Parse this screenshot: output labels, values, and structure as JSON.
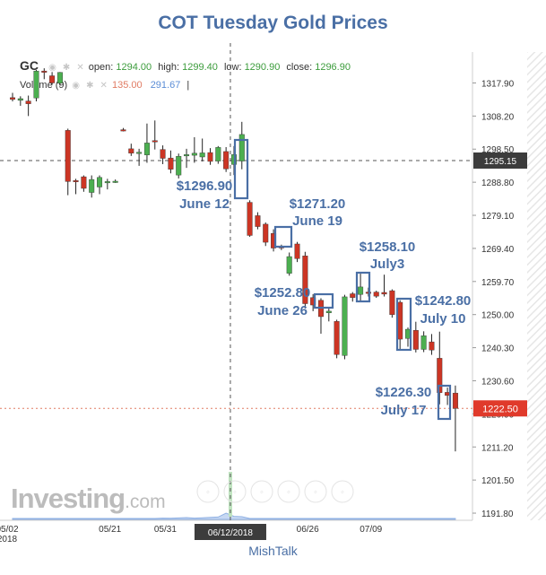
{
  "header": {
    "title": "COT Tuesday Gold Prices"
  },
  "legend": {
    "symbol": "GC",
    "open_label": "open:",
    "open": "1294.00",
    "high_label": "high:",
    "high": "1299.40",
    "low_label": "low:",
    "low": "1290.90",
    "close_label": "close:",
    "close": "1296.90",
    "volume_label": "Volume (9)",
    "volume_value1": "135.00",
    "volume_value2": "291.67",
    "icons": [
      "eye-icon",
      "gear-icon",
      "close-icon"
    ]
  },
  "watermark": {
    "brand": "Investing",
    "suffix": ".com"
  },
  "footer": {
    "credit": "MishTalk"
  },
  "colors": {
    "up": "#4caf50",
    "down": "#cc3524",
    "annotation": "#4a6fa5",
    "current_price_tag": "#e03a2b",
    "crosshair_tag": "#3c3c3c"
  },
  "chart_data": {
    "type": "candlestick",
    "title": "COT Tuesday Gold Prices",
    "ylim": [
      1187,
      1325
    ],
    "y_ticks": [
      "1317.90",
      "1308.20",
      "1298.50",
      "1288.80",
      "1279.10",
      "1269.40",
      "1259.70",
      "1250.00",
      "1240.30",
      "1230.60",
      "1220.90",
      "1211.20",
      "1201.50",
      "1191.80"
    ],
    "x_ticks": [
      {
        "label": "05/02",
        "sub": "2018",
        "index": 0
      },
      {
        "label": "05/21",
        "index": 13
      },
      {
        "label": "05/31",
        "index": 20
      },
      {
        "label": "06/26",
        "index": 38
      },
      {
        "label": "07/09",
        "index": 46
      }
    ],
    "crosshair": {
      "price": "1295.15",
      "date": "06/12/2018",
      "index": 28
    },
    "current_price": "1222.50",
    "candles": [
      {
        "o": 1313.6,
        "h": 1315.0,
        "l": 1312.5,
        "c": 1313.1
      },
      {
        "o": 1312.8,
        "h": 1314.0,
        "l": 1311.2,
        "c": 1313.3
      },
      {
        "o": 1312.6,
        "h": 1314.2,
        "l": 1308.2,
        "c": 1311.8
      },
      {
        "o": 1313.5,
        "h": 1321.7,
        "l": 1312.5,
        "c": 1321.4
      },
      {
        "o": 1321.4,
        "h": 1322.2,
        "l": 1319.0,
        "c": 1321.1
      },
      {
        "o": 1320.0,
        "h": 1321.1,
        "l": 1317.4,
        "c": 1317.9
      },
      {
        "o": 1317.8,
        "h": 1321.1,
        "l": 1317.1,
        "c": 1321.0
      },
      {
        "o": 1304.0,
        "h": 1304.5,
        "l": 1285.0,
        "c": 1289.0
      },
      {
        "o": 1289.3,
        "h": 1289.8,
        "l": 1285.3,
        "c": 1289.1
      },
      {
        "o": 1290.4,
        "h": 1290.8,
        "l": 1286.0,
        "c": 1287.0
      },
      {
        "o": 1285.8,
        "h": 1290.8,
        "l": 1284.3,
        "c": 1289.6
      },
      {
        "o": 1287.4,
        "h": 1290.8,
        "l": 1285.3,
        "c": 1290.2
      },
      {
        "o": 1288.8,
        "h": 1289.8,
        "l": 1286.7,
        "c": 1289.0
      },
      {
        "o": 1289.0,
        "h": 1289.6,
        "l": 1288.6,
        "c": 1289.1
      },
      {
        "o": 1304.2,
        "h": 1304.7,
        "l": 1303.7,
        "c": 1304.1
      },
      {
        "o": 1298.6,
        "h": 1300.1,
        "l": 1296.5,
        "c": 1297.3
      },
      {
        "o": 1297.4,
        "h": 1298.6,
        "l": 1293.6,
        "c": 1297.6
      },
      {
        "o": 1296.8,
        "h": 1306.0,
        "l": 1294.5,
        "c": 1300.3
      },
      {
        "o": 1301.0,
        "h": 1306.9,
        "l": 1298.4,
        "c": 1300.6
      },
      {
        "o": 1298.4,
        "h": 1299.6,
        "l": 1294.1,
        "c": 1295.8
      },
      {
        "o": 1295.9,
        "h": 1298.1,
        "l": 1291.4,
        "c": 1292.6
      },
      {
        "o": 1290.9,
        "h": 1297.2,
        "l": 1289.9,
        "c": 1296.4
      },
      {
        "o": 1296.5,
        "h": 1298.6,
        "l": 1293.0,
        "c": 1296.9
      },
      {
        "o": 1296.7,
        "h": 1302.0,
        "l": 1294.5,
        "c": 1297.3
      },
      {
        "o": 1296.2,
        "h": 1301.6,
        "l": 1294.9,
        "c": 1297.4
      },
      {
        "o": 1297.5,
        "h": 1298.8,
        "l": 1293.9,
        "c": 1294.9
      },
      {
        "o": 1295.0,
        "h": 1299.4,
        "l": 1294.2,
        "c": 1299.0
      },
      {
        "o": 1297.8,
        "h": 1299.1,
        "l": 1291.8,
        "c": 1292.7
      },
      {
        "o": 1294.0,
        "h": 1299.4,
        "l": 1290.9,
        "c": 1296.9
      },
      {
        "o": 1295.0,
        "h": 1306.5,
        "l": 1292.6,
        "c": 1302.8
      },
      {
        "o": 1282.9,
        "h": 1283.5,
        "l": 1272.8,
        "c": 1273.2
      },
      {
        "o": 1279.0,
        "h": 1280.0,
        "l": 1275.0,
        "c": 1275.8
      },
      {
        "o": 1276.5,
        "h": 1277.0,
        "l": 1270.1,
        "c": 1271.2
      },
      {
        "o": 1273.8,
        "h": 1275.0,
        "l": 1268.5,
        "c": 1269.5
      },
      {
        "o": 1269.9,
        "h": 1270.5,
        "l": 1268.9,
        "c": 1269.6
      },
      {
        "o": 1262.1,
        "h": 1268.2,
        "l": 1261.4,
        "c": 1267.0
      },
      {
        "o": 1270.7,
        "h": 1271.3,
        "l": 1265.4,
        "c": 1266.4
      },
      {
        "o": 1267.2,
        "h": 1268.4,
        "l": 1251.8,
        "c": 1253.2
      },
      {
        "o": 1255.0,
        "h": 1256.0,
        "l": 1251.0,
        "c": 1252.8
      },
      {
        "o": 1254.2,
        "h": 1254.8,
        "l": 1244.4,
        "c": 1249.4
      },
      {
        "o": 1250.5,
        "h": 1252.1,
        "l": 1248.0,
        "c": 1251.0
      },
      {
        "o": 1248.0,
        "h": 1248.5,
        "l": 1237.2,
        "c": 1238.3
      },
      {
        "o": 1238.0,
        "h": 1255.8,
        "l": 1236.9,
        "c": 1255.2
      },
      {
        "o": 1256.1,
        "h": 1256.6,
        "l": 1253.8,
        "c": 1255.0
      },
      {
        "o": 1255.9,
        "h": 1262.0,
        "l": 1254.0,
        "c": 1258.1
      },
      {
        "o": 1256.6,
        "h": 1257.9,
        "l": 1255.3,
        "c": 1256.2
      },
      {
        "o": 1256.6,
        "h": 1257.0,
        "l": 1254.9,
        "c": 1255.4
      },
      {
        "o": 1256.5,
        "h": 1261.7,
        "l": 1255.3,
        "c": 1256.0
      },
      {
        "o": 1257.0,
        "h": 1257.4,
        "l": 1249.1,
        "c": 1250.0
      },
      {
        "o": 1253.6,
        "h": 1254.2,
        "l": 1239.6,
        "c": 1242.8
      },
      {
        "o": 1243.0,
        "h": 1246.2,
        "l": 1240.6,
        "c": 1245.7
      },
      {
        "o": 1245.4,
        "h": 1247.9,
        "l": 1238.9,
        "c": 1239.8
      },
      {
        "o": 1239.8,
        "h": 1245.1,
        "l": 1239.0,
        "c": 1243.8
      },
      {
        "o": 1242.0,
        "h": 1244.3,
        "l": 1238.2,
        "c": 1239.6
      },
      {
        "o": 1237.2,
        "h": 1245.0,
        "l": 1223.7,
        "c": 1227.1
      },
      {
        "o": 1227.2,
        "h": 1228.6,
        "l": 1223.5,
        "c": 1226.3
      },
      {
        "o": 1227.0,
        "h": 1229.2,
        "l": 1209.9,
        "c": 1222.5
      }
    ],
    "volume": [
      0,
      0,
      0,
      0,
      0,
      0,
      0,
      0,
      0,
      0,
      0,
      0,
      0,
      0,
      0,
      0,
      0,
      0,
      0,
      2,
      1,
      3,
      5,
      2,
      4,
      6,
      8,
      30,
      12,
      10,
      0,
      0,
      0,
      0,
      0,
      0,
      0,
      0,
      0,
      0,
      0,
      0,
      0,
      0,
      0,
      0,
      0,
      0,
      0,
      0,
      0,
      0,
      0,
      0,
      0,
      0,
      0
    ],
    "annotations": [
      {
        "price": "$1296.90",
        "date": "June 12",
        "index": 28
      },
      {
        "price": "$1271.20",
        "date": "June 19",
        "index": 32
      },
      {
        "price": "$1252.80",
        "date": "June 26",
        "index": 38
      },
      {
        "price": "$1258.10",
        "date": "July3",
        "index": 44
      },
      {
        "price": "$1242.80",
        "date": "July 10",
        "index": 49
      },
      {
        "price": "$1226.30",
        "date": "July 17",
        "index": 55
      }
    ]
  }
}
